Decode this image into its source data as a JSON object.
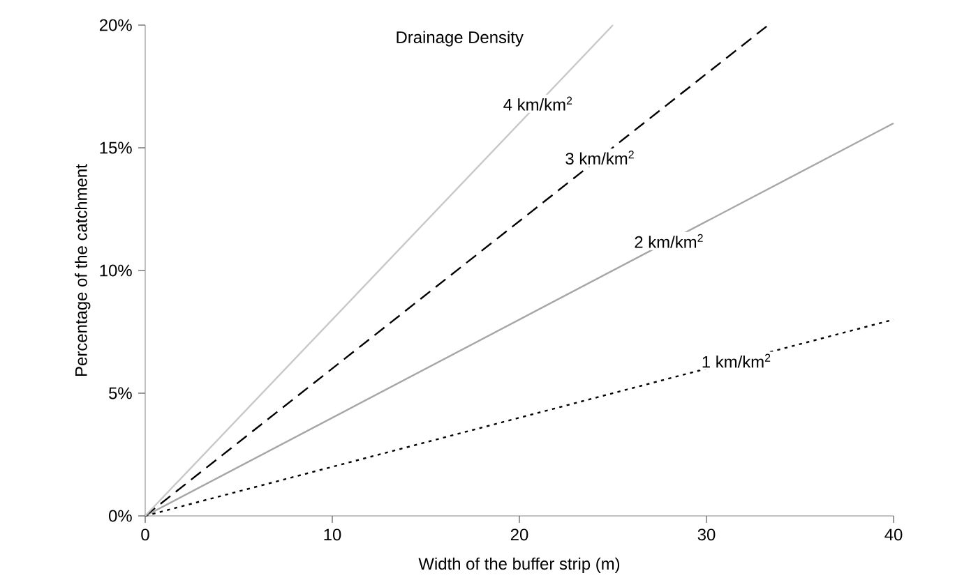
{
  "chart_data": {
    "type": "line",
    "xlabel": "Width of the buffer strip (m)",
    "ylabel": "Percentage of the catchment",
    "legend_title": "Drainage Density",
    "xlim": [
      0,
      40
    ],
    "xticks": [
      0,
      10,
      20,
      30,
      40
    ],
    "ylim": [
      0,
      20
    ],
    "yticks": [
      {
        "value": 0,
        "label": "0%"
      },
      {
        "value": 5,
        "label": "5%"
      },
      {
        "value": 10,
        "label": "10%"
      },
      {
        "value": 15,
        "label": "15%"
      },
      {
        "value": 20,
        "label": "20%"
      }
    ],
    "grid": false,
    "series": [
      {
        "name": "1 km/km$^{2}$",
        "color": "#000000",
        "line_style": "dotted",
        "x": [
          0,
          40
        ],
        "values": [
          0,
          8
        ]
      },
      {
        "name": "2 km/km$^{2}$",
        "color": "#a6a6a6",
        "line_style": "solid",
        "x": [
          0,
          40
        ],
        "values": [
          0,
          16
        ]
      },
      {
        "name": "3 km/km$^{2}$",
        "color": "#000000",
        "line_style": "dashed",
        "x": [
          0,
          33.3
        ],
        "values": [
          0,
          20
        ]
      },
      {
        "name": "4 km/km$^{2}$",
        "color": "#c8c8c8",
        "line_style": "solid",
        "x": [
          0,
          25
        ],
        "values": [
          0,
          20
        ]
      }
    ]
  }
}
